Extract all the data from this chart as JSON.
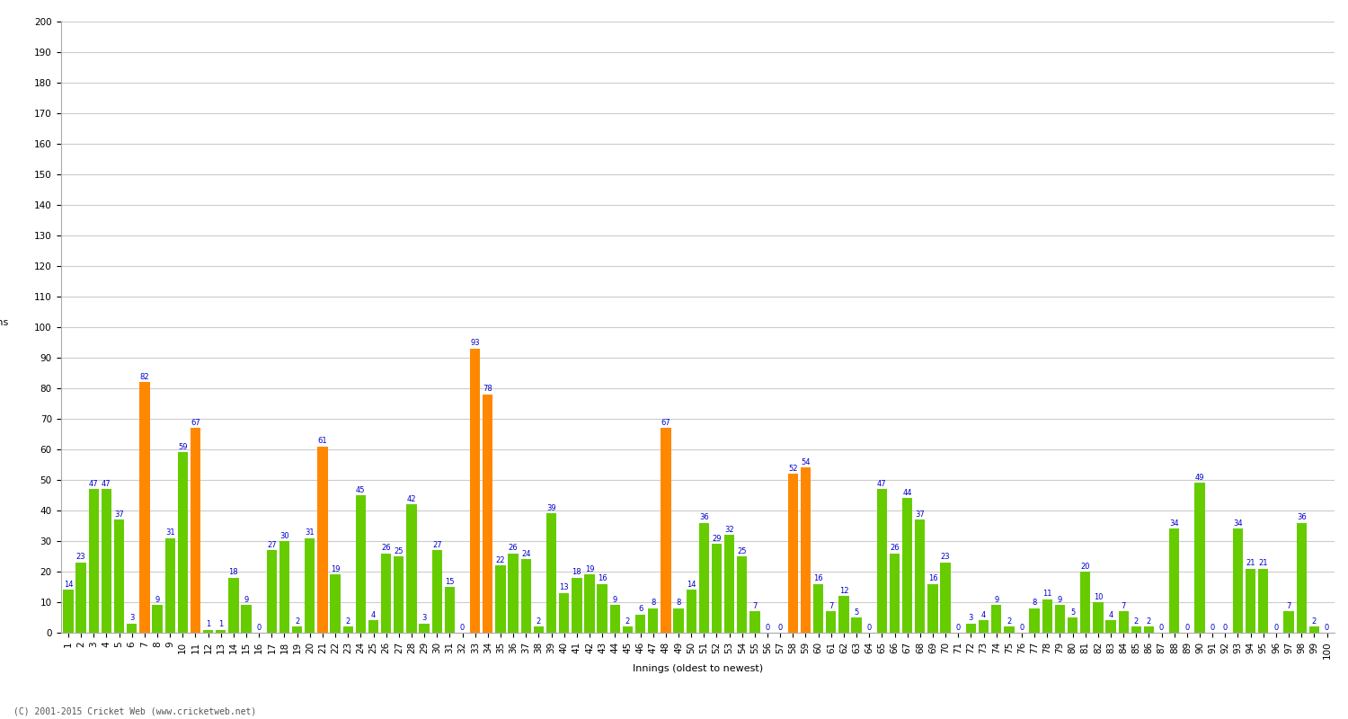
{
  "xlabel": "Innings (oldest to newest)",
  "ylim": [
    0,
    200
  ],
  "yticks": [
    0,
    10,
    20,
    30,
    40,
    50,
    60,
    70,
    80,
    90,
    100,
    110,
    120,
    130,
    140,
    150,
    160,
    170,
    180,
    190,
    200
  ],
  "innings": [
    1,
    2,
    3,
    4,
    5,
    6,
    7,
    8,
    9,
    10,
    11,
    12,
    13,
    14,
    15,
    16,
    17,
    18,
    19,
    20,
    21,
    22,
    23,
    24,
    25,
    26,
    27,
    28,
    29,
    30,
    31,
    32,
    33,
    34,
    35,
    36,
    37,
    38,
    39,
    40,
    41,
    42,
    43,
    44,
    45,
    46,
    47,
    48,
    49,
    50,
    51,
    52,
    53,
    54,
    55,
    56,
    57,
    58,
    59,
    60,
    61,
    62,
    63,
    64,
    65,
    66,
    67,
    68,
    69,
    70,
    71,
    72,
    73,
    74,
    75,
    76,
    77,
    78,
    79,
    80,
    81,
    82,
    83,
    84,
    85,
    86,
    87,
    88,
    89,
    90,
    91,
    92,
    93,
    94,
    95,
    96,
    97,
    98,
    99,
    100
  ],
  "values": [
    14,
    23,
    47,
    47,
    37,
    3,
    82,
    9,
    31,
    59,
    67,
    1,
    1,
    18,
    9,
    0,
    27,
    30,
    2,
    31,
    61,
    19,
    2,
    45,
    4,
    26,
    25,
    42,
    3,
    27,
    15,
    0,
    93,
    78,
    22,
    26,
    24,
    2,
    39,
    13,
    18,
    19,
    16,
    9,
    2,
    6,
    8,
    67,
    8,
    14,
    36,
    29,
    32,
    25,
    7,
    0,
    0,
    52,
    54,
    16,
    7,
    12,
    5,
    0,
    47,
    26,
    44,
    37,
    16,
    23,
    0,
    3,
    4,
    9,
    2,
    0,
    8,
    11,
    9,
    5,
    20,
    10,
    4,
    7,
    2,
    2,
    0,
    34,
    0,
    49,
    0,
    0,
    34,
    21,
    21,
    0,
    7,
    36,
    2,
    0
  ],
  "colors": [
    "#66cc00",
    "#66cc00",
    "#66cc00",
    "#66cc00",
    "#66cc00",
    "#66cc00",
    "#ff8800",
    "#66cc00",
    "#66cc00",
    "#66cc00",
    "#ff8800",
    "#66cc00",
    "#66cc00",
    "#66cc00",
    "#66cc00",
    "#66cc00",
    "#66cc00",
    "#66cc00",
    "#66cc00",
    "#66cc00",
    "#ff8800",
    "#66cc00",
    "#66cc00",
    "#66cc00",
    "#66cc00",
    "#66cc00",
    "#66cc00",
    "#66cc00",
    "#66cc00",
    "#66cc00",
    "#66cc00",
    "#66cc00",
    "#ff8800",
    "#ff8800",
    "#66cc00",
    "#66cc00",
    "#66cc00",
    "#66cc00",
    "#66cc00",
    "#66cc00",
    "#66cc00",
    "#66cc00",
    "#66cc00",
    "#66cc00",
    "#66cc00",
    "#66cc00",
    "#66cc00",
    "#ff8800",
    "#66cc00",
    "#66cc00",
    "#66cc00",
    "#66cc00",
    "#66cc00",
    "#66cc00",
    "#66cc00",
    "#66cc00",
    "#66cc00",
    "#ff8800",
    "#ff8800",
    "#66cc00",
    "#66cc00",
    "#66cc00",
    "#66cc00",
    "#66cc00",
    "#66cc00",
    "#66cc00",
    "#66cc00",
    "#66cc00",
    "#66cc00",
    "#66cc00",
    "#66cc00",
    "#66cc00",
    "#66cc00",
    "#66cc00",
    "#66cc00",
    "#66cc00",
    "#66cc00",
    "#66cc00",
    "#66cc00",
    "#66cc00",
    "#66cc00",
    "#66cc00",
    "#66cc00",
    "#66cc00",
    "#66cc00",
    "#66cc00",
    "#66cc00",
    "#66cc00",
    "#66cc00",
    "#66cc00",
    "#66cc00",
    "#66cc00",
    "#66cc00",
    "#66cc00",
    "#66cc00",
    "#66cc00",
    "#66cc00",
    "#66cc00",
    "#66cc00",
    "#66cc00"
  ],
  "background_color": "#ffffff",
  "grid_color": "#cccccc",
  "label_color": "#0000cc",
  "bar_label_fontsize": 6,
  "axis_label_fontsize": 8,
  "tick_fontsize": 7.5,
  "footer": "(C) 2001-2015 Cricket Web (www.cricketweb.net)"
}
